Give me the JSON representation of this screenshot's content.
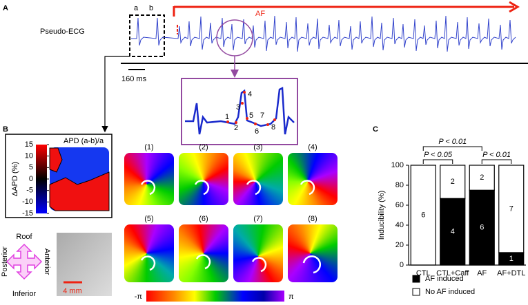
{
  "panels": {
    "a": "A",
    "b": "B",
    "c": "C"
  },
  "ecg": {
    "label": "Pseudo-ECG",
    "window_labels": [
      "a",
      "b"
    ],
    "af_label": "AF",
    "scale_bar": "160 ms",
    "points": [
      "1",
      "2",
      "3",
      "4",
      "5",
      "6",
      "7",
      "8"
    ]
  },
  "apd_map": {
    "title": "APD (a-b)/a",
    "colorbar_label": "ΔAPD (%)",
    "clim": [
      -15,
      15
    ],
    "ticks": [
      15,
      10,
      5,
      0,
      -5,
      -10,
      -15
    ]
  },
  "phase_maps": {
    "labels": [
      "(1)",
      "(2)",
      "(3)",
      "(4)",
      "(5)",
      "(6)",
      "(7)",
      "(8)"
    ],
    "colorbar_min": "-π",
    "colorbar_max": "π"
  },
  "orientation": {
    "top": "Roof",
    "bottom": "Inferior",
    "left": "Posterior",
    "right": "Anterior",
    "scale_bar": "4 mm"
  },
  "chart_data": {
    "type": "stacked_bar",
    "ylabel": "Inducibility (%)",
    "categories": [
      "CTL",
      "CTL+Caff",
      "AF",
      "AF+DTL"
    ],
    "series": [
      {
        "name": "AF induced",
        "color": "#000000",
        "values": [
          0,
          66.7,
          75,
          12.5
        ],
        "counts": [
          null,
          4,
          6,
          1
        ]
      },
      {
        "name": "No AF induced",
        "color": "#ffffff",
        "values": [
          100,
          33.3,
          25,
          87.5
        ],
        "counts": [
          6,
          2,
          2,
          7
        ]
      }
    ],
    "ylim": [
      0,
      100
    ],
    "yticks": [
      0,
      20,
      40,
      60,
      80,
      100
    ],
    "significance": [
      "P < 0.01",
      "P < 0.05",
      "P < 0.01"
    ]
  }
}
